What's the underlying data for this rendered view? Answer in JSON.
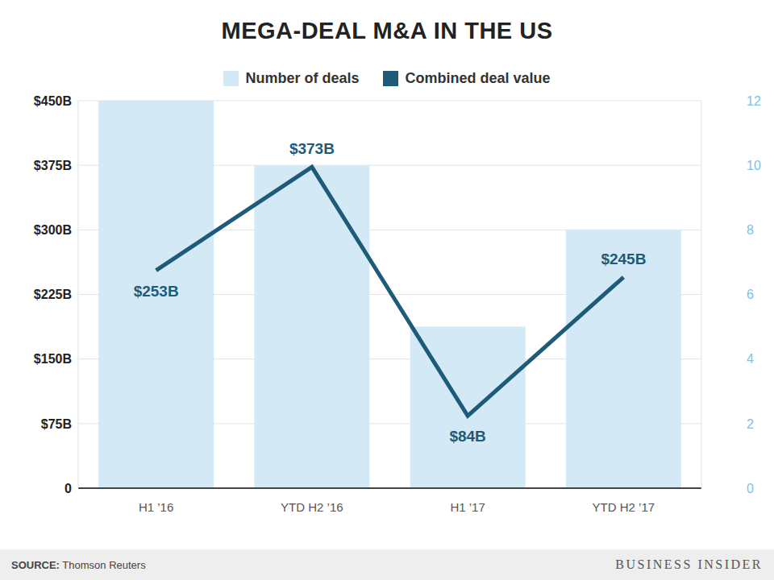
{
  "chart_data": {
    "type": "bar",
    "title": "MEGA-DEAL M&A IN THE US",
    "categories": [
      "H1 ’16",
      "YTD H2 ’16",
      "H1 ’17",
      "YTD H2 ’17"
    ],
    "series": [
      {
        "name": "Number of deals",
        "type": "bar",
        "color": "#d4e9f6",
        "axis": "y2",
        "values": [
          12,
          10,
          5,
          8
        ]
      },
      {
        "name": "Combined deal value",
        "type": "line",
        "color": "#1d5b79",
        "values": [
          253,
          373,
          84,
          245
        ],
        "value_labels": [
          "$253B",
          "$373B",
          "$84B",
          "$245B"
        ],
        "data_labels": true
      }
    ],
    "ylim": [
      0,
      450
    ],
    "yticks": [
      0,
      {
        "value": 75,
        "label": "$75B"
      },
      {
        "value": 150,
        "label": "$150B"
      },
      {
        "value": 225,
        "label": "$225B"
      },
      {
        "value": 300,
        "label": "$300B"
      },
      {
        "value": 375,
        "label": "$375B"
      },
      {
        "value": 450,
        "label": "$450B"
      }
    ],
    "y2lim": [
      0,
      12
    ],
    "y2ticks": [
      0,
      2,
      4,
      6,
      8,
      10,
      12
    ],
    "grid": true,
    "legend": "top",
    "source_label": "SOURCE:",
    "source": "Thomson Reuters",
    "branding": "BUSINESS INSIDER"
  }
}
